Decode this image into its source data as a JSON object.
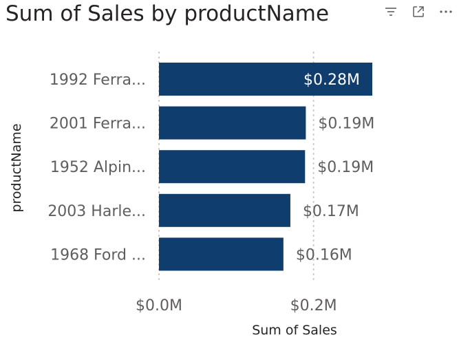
{
  "toolbar": {
    "filter_icon": "filter-icon",
    "focus_icon": "focus-mode-icon",
    "more_icon": "more-options-icon"
  },
  "chart_data": {
    "type": "bar",
    "orientation": "horizontal",
    "title": "Sum of Sales by productName",
    "xlabel": "Sum of Sales",
    "ylabel": "productName",
    "categories": [
      "1992 Ferra...",
      "2001 Ferra...",
      "1952 Alpin...",
      "2003 Harle...",
      "1968 Ford ..."
    ],
    "values": [
      0.276,
      0.19,
      0.189,
      0.17,
      0.161
    ],
    "data_labels": [
      "$0.28M",
      "$0.19M",
      "$0.19M",
      "$0.17M",
      "$0.16M"
    ],
    "xlim": [
      0,
      0.276
    ],
    "x_ticks": [
      0,
      0.2
    ],
    "x_tick_labels": [
      "$0.0M",
      "$0.2M"
    ],
    "grid": "vertical dotted",
    "legend": "none",
    "colors": {
      "bar": "#0f3d6e",
      "label_inside": "#ffffff",
      "label_outside": "#605e5c",
      "grid": "#c8c6c4"
    }
  }
}
